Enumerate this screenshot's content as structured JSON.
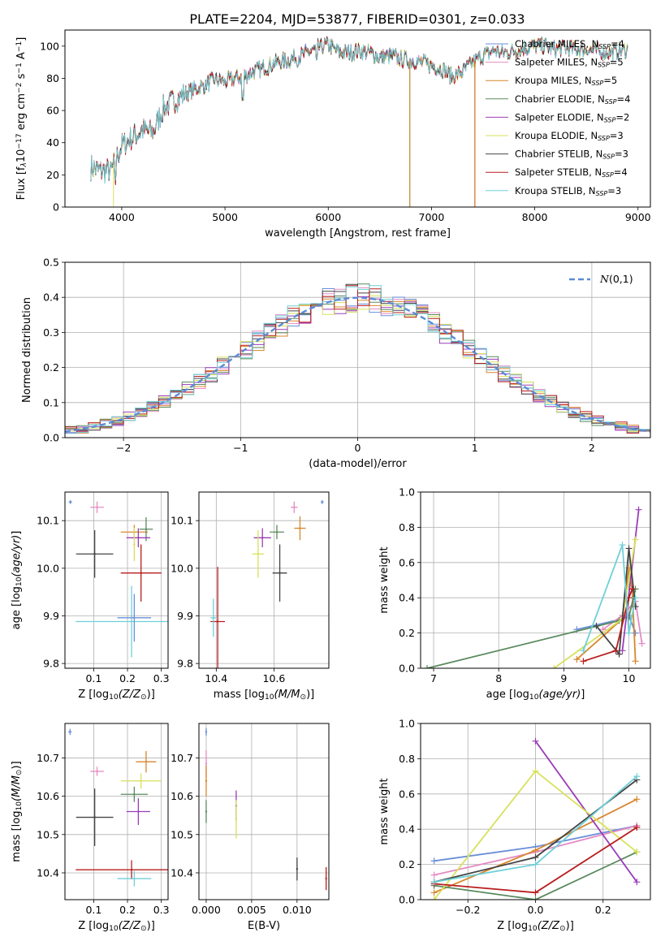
{
  "page_title": "PLATE=2204, MJD=53877, FIBERID=0301, z=0.033",
  "colors": {
    "s0": "#6a8fd8",
    "s1": "#e48bc3",
    "s2": "#d8862d",
    "s3": "#5a8a5e",
    "s4": "#9b3db8",
    "s5": "#d7e15a",
    "s6": "#444444",
    "s7": "#b81d1d",
    "s8": "#6fd0d8"
  },
  "chart_data": [
    {
      "id": "spectrum",
      "type": "line",
      "title": "PLATE=2204, MJD=53877, FIBERID=0301, z=0.033",
      "xlabel": "wavelength [Angstrom, rest frame]",
      "ylabel": "Flux [f_λ 10^-17 erg cm^-2 s^-1 A^-1]",
      "xlim": [
        3450,
        9120
      ],
      "ylim": [
        0,
        110
      ],
      "xticks": [
        4000,
        5000,
        6000,
        7000,
        8000,
        9000
      ],
      "yticks": [
        0,
        20,
        40,
        60,
        80,
        100
      ],
      "grid": false,
      "legend_position": "right",
      "legend": [
        "Chabrier MILES, N_SSP=4",
        "Salpeter MILES, N_SSP=5",
        "Kroupa MILES, N_SSP=5",
        "Chabrier ELODIE, N_SSP=4",
        "Salpeter ELODIE, N_SSP=2",
        "Kroupa ELODIE, N_SSP=3",
        "Chabrier STELIB, N_SSP=3",
        "Salpeter STELIB, N_SSP=4",
        "Kroupa STELIB, N_SSP=3"
      ],
      "continuum": {
        "wavelength": [
          3700,
          3800,
          3900,
          4000,
          4100,
          4200,
          4300,
          4400,
          4500,
          4600,
          4700,
          4800,
          4900,
          5000,
          5100,
          5200,
          5300,
          5400,
          5500,
          5600,
          5700,
          5800,
          5900,
          6000,
          6100,
          6200,
          6300,
          6400,
          6500,
          6600,
          6700,
          6800,
          6900,
          7000,
          7100,
          7200,
          7300,
          7400,
          7500,
          7600,
          7700,
          7800,
          7900,
          8000,
          8100,
          8200,
          8300,
          8400,
          8500,
          8600,
          8700,
          8800,
          8900
        ],
        "flux": [
          25,
          22,
          23,
          38,
          43,
          48,
          46,
          61,
          66,
          70,
          73,
          76,
          79,
          78,
          80,
          82,
          85,
          87,
          90,
          91,
          93,
          96,
          99,
          101,
          96,
          96,
          97,
          96,
          93,
          94,
          92,
          91,
          90,
          88,
          86,
          81,
          84,
          90,
          94,
          97,
          96,
          97,
          99,
          100,
          100,
          98,
          99,
          98,
          98,
          97,
          96,
          97,
          98
        ]
      },
      "drops": [
        {
          "series": "Kroupa ELODIE, N_SSP=3",
          "wavelength": 3920,
          "flux": 0
        },
        {
          "series": "Chabrier ELODIE, N_SSP=4",
          "wavelength": 6790,
          "flux": 0
        },
        {
          "series": "Kroupa MILES, N_SSP=5",
          "wavelength": 6790,
          "flux": 0
        },
        {
          "series": "Salpeter STELIB, N_SSP=4",
          "wavelength": 7420,
          "flux": 0
        },
        {
          "series": "Kroupa MILES, N_SSP=5",
          "wavelength": 7420,
          "flux": 0
        }
      ]
    },
    {
      "id": "residuals",
      "type": "histogram",
      "xlabel": "(data-model)/error",
      "ylabel": "Normed distribution",
      "xlim": [
        -2.5,
        2.5
      ],
      "ylim": [
        0,
        0.5
      ],
      "xticks": [
        -2,
        -1,
        0,
        1,
        2
      ],
      "yticks": [
        0.0,
        0.1,
        0.2,
        0.3,
        0.4,
        0.5
      ],
      "grid": true,
      "legend_position": "top-right",
      "legend": [
        "N(0,1)"
      ],
      "reference": {
        "name": "N(0,1)",
        "mean": 0,
        "sigma": 1
      }
    },
    {
      "id": "age-vs-Z",
      "type": "scatter",
      "xlabel": "Z [log10(Z/Z_sun)]",
      "ylabel": "age  [log10(age/yr)]",
      "xlim": [
        0.015,
        0.32
      ],
      "ylim": [
        9.79,
        10.16
      ],
      "xticks": [
        0.1,
        0.2,
        0.3
      ],
      "yticks": [
        9.8,
        9.9,
        10.0,
        10.1
      ],
      "grid": true,
      "points": [
        {
          "x": 0.031,
          "y": 10.139,
          "xerr": 0.005,
          "yerr": 0.004
        },
        {
          "x": 0.11,
          "y": 10.128,
          "xerr": 0.02,
          "yerr": 0.012
        },
        {
          "x": 0.22,
          "y": 10.076,
          "xerr": 0.04,
          "yerr": 0.015
        },
        {
          "x": 0.255,
          "y": 10.082,
          "xerr": 0.02,
          "yerr": 0.025
        },
        {
          "x": 0.232,
          "y": 10.064,
          "xerr": 0.035,
          "yerr": 0.02
        },
        {
          "x": 0.22,
          "y": 10.05,
          "xerr": 0.003,
          "yerr": 0.035
        },
        {
          "x": 0.103,
          "y": 10.03,
          "xerr": 0.055,
          "yerr": 0.05
        },
        {
          "x": 0.24,
          "y": 9.99,
          "xerr": 0.06,
          "yerr": 0.06
        },
        {
          "x": 0.212,
          "y": 9.888,
          "xerr": 0.165,
          "yerr": 0.075
        },
        {
          "x": 0.22,
          "y": 9.896,
          "xerr": 0.05,
          "yerr": 0.05
        }
      ]
    },
    {
      "id": "age-vs-mass",
      "type": "scatter",
      "xlabel": "mass [log10(M/M_sun)]",
      "ylabel": "",
      "xlim": [
        10.34,
        10.79
      ],
      "ylim": [
        9.79,
        10.16
      ],
      "xticks": [
        10.4,
        10.6
      ],
      "yticks": [
        9.8,
        9.9,
        10.0,
        10.1
      ],
      "grid": true,
      "points": [
        {
          "x": 10.767,
          "y": 10.139,
          "xerr": 0.005,
          "yerr": 0.004
        },
        {
          "x": 10.67,
          "y": 10.128,
          "xerr": 0.012,
          "yerr": 0.012
        },
        {
          "x": 10.69,
          "y": 10.084,
          "xerr": 0.02,
          "yerr": 0.025
        },
        {
          "x": 10.61,
          "y": 10.076,
          "xerr": 0.025,
          "yerr": 0.015
        },
        {
          "x": 10.56,
          "y": 10.064,
          "xerr": 0.03,
          "yerr": 0.02
        },
        {
          "x": 10.545,
          "y": 10.03,
          "xerr": 0.02,
          "yerr": 0.05
        },
        {
          "x": 10.62,
          "y": 9.99,
          "xerr": 0.025,
          "yerr": 0.06
        },
        {
          "x": 10.405,
          "y": 9.888,
          "xerr": 0.025,
          "yerr": 0.115
        },
        {
          "x": 10.39,
          "y": 9.896,
          "xerr": 0.01,
          "yerr": 0.04
        }
      ]
    },
    {
      "id": "weight-vs-age",
      "type": "line",
      "xlabel": "age  [log10(age/yr)]",
      "ylabel": "mass weight",
      "xlim": [
        6.8,
        10.33
      ],
      "ylim": [
        0,
        1
      ],
      "xticks": [
        7,
        8,
        9,
        10
      ],
      "yticks": [
        0.0,
        0.2,
        0.4,
        0.6,
        0.8,
        1.0
      ],
      "grid": true,
      "series": [
        {
          "x": [
            9.2,
            9.9,
            10.0,
            10.1
          ],
          "y": [
            0.22,
            0.28,
            0.3,
            0.2
          ]
        },
        {
          "x": [
            9.6,
            9.9,
            10.1,
            10.2
          ],
          "y": [
            0.22,
            0.3,
            0.38,
            0.14
          ]
        },
        {
          "x": [
            9.2,
            9.9,
            10.0,
            10.05,
            10.1
          ],
          "y": [
            0.05,
            0.28,
            0.57,
            0.45,
            0.04
          ]
        },
        {
          "x": [
            6.9,
            9.85,
            10.0,
            10.1
          ],
          "y": [
            0.0,
            0.27,
            0.29,
            0.45
          ]
        },
        {
          "x": [
            9.9,
            10.15
          ],
          "y": [
            0.1,
            0.9
          ]
        },
        {
          "x": [
            8.85,
            9.9,
            10.1
          ],
          "y": [
            0.0,
            0.28,
            0.73
          ]
        },
        {
          "x": [
            9.5,
            9.85,
            10.0,
            10.1
          ],
          "y": [
            0.24,
            0.08,
            0.68,
            0.35
          ]
        },
        {
          "x": [
            9.3,
            9.8,
            10.0,
            10.05
          ],
          "y": [
            0.04,
            0.1,
            0.4,
            0.45
          ]
        },
        {
          "x": [
            9.3,
            9.9,
            10.0,
            10.1
          ],
          "y": [
            0.1,
            0.7,
            0.2,
            0.4
          ]
        }
      ]
    },
    {
      "id": "mass-vs-Z",
      "type": "scatter",
      "xlabel": "Z [log10(Z/Z_sun)]",
      "ylabel": "mass [log10(M/M_sun)]",
      "xlim": [
        0.015,
        0.32
      ],
      "ylim": [
        10.33,
        10.79
      ],
      "xticks": [
        0.1,
        0.2,
        0.3
      ],
      "yticks": [
        10.4,
        10.5,
        10.6,
        10.7
      ],
      "grid": true,
      "points": [
        {
          "x": 0.03,
          "y": 10.768,
          "xerr": 0.005,
          "yerr": 0.008
        },
        {
          "x": 0.11,
          "y": 10.665,
          "xerr": 0.02,
          "yerr": 0.012
        },
        {
          "x": 0.255,
          "y": 10.69,
          "xerr": 0.03,
          "yerr": 0.028
        },
        {
          "x": 0.22,
          "y": 10.605,
          "xerr": 0.04,
          "yerr": 0.02
        },
        {
          "x": 0.232,
          "y": 10.56,
          "xerr": 0.035,
          "yerr": 0.035
        },
        {
          "x": 0.24,
          "y": 10.64,
          "xerr": 0.06,
          "yerr": 0.02
        },
        {
          "x": 0.103,
          "y": 10.545,
          "xerr": 0.055,
          "yerr": 0.075
        },
        {
          "x": 0.212,
          "y": 10.408,
          "xerr": 0.165,
          "yerr": 0.025
        },
        {
          "x": 0.22,
          "y": 10.385,
          "xerr": 0.05,
          "yerr": 0.02
        }
      ]
    },
    {
      "id": "mass-vs-EBV",
      "type": "scatter",
      "xlabel": "E(B-V)",
      "ylabel": "",
      "xlim": [
        -0.0008,
        0.0135
      ],
      "ylim": [
        10.33,
        10.79
      ],
      "xticks": [
        0.0,
        0.005,
        0.01
      ],
      "xtick_labels": [
        "0.000",
        "0.005",
        "0.010"
      ],
      "yticks": [
        10.4,
        10.5,
        10.6,
        10.7
      ],
      "grid": true,
      "points": [
        {
          "x": 0.0,
          "y": 10.768,
          "xerr": 0.0,
          "yerr": 0.01
        },
        {
          "x": 0.0,
          "y": 10.685,
          "xerr": 0.0,
          "yerr": 0.035
        },
        {
          "x": 0.0,
          "y": 10.64,
          "xerr": 0.0,
          "yerr": 0.04
        },
        {
          "x": 0.0,
          "y": 10.56,
          "xerr": 0.0,
          "yerr": 0.03
        },
        {
          "x": 0.0033,
          "y": 10.575,
          "xerr": 0.0,
          "yerr": 0.04
        },
        {
          "x": 0.0033,
          "y": 10.54,
          "xerr": 0.0,
          "yerr": 0.05
        },
        {
          "x": 0.01,
          "y": 10.41,
          "xerr": 0.0,
          "yerr": 0.03
        },
        {
          "x": 0.0132,
          "y": 10.385,
          "xerr": 0.0,
          "yerr": 0.03
        }
      ]
    },
    {
      "id": "weight-vs-Z",
      "type": "line",
      "xlabel": "Z [log10(Z/Z_sun)]",
      "ylabel": "mass weight",
      "xlim": [
        -0.34,
        0.34
      ],
      "ylim": [
        0,
        1
      ],
      "xticks": [
        -0.2,
        0.0,
        0.2
      ],
      "xtick_labels": [
        "−0.2",
        "0.0",
        "0.2"
      ],
      "yticks": [
        0.0,
        0.2,
        0.4,
        0.6,
        0.8,
        1.0
      ],
      "grid": true,
      "series": [
        {
          "x": [
            -0.3,
            0.0,
            0.3
          ],
          "y": [
            0.22,
            0.3,
            0.42
          ]
        },
        {
          "x": [
            -0.3,
            0.0,
            0.3
          ],
          "y": [
            0.14,
            0.27,
            0.42
          ]
        },
        {
          "x": [
            -0.3,
            0.0,
            0.3
          ],
          "y": [
            0.04,
            0.28,
            0.57
          ]
        },
        {
          "x": [
            -0.3,
            0.0,
            0.3
          ],
          "y": [
            0.08,
            0.0,
            0.27
          ]
        },
        {
          "x": [
            0.0,
            0.3
          ],
          "y": [
            0.9,
            0.1
          ]
        },
        {
          "x": [
            -0.3,
            0.0,
            0.3
          ],
          "y": [
            0.0,
            0.73,
            0.27
          ]
        },
        {
          "x": [
            -0.3,
            0.0,
            0.3
          ],
          "y": [
            0.1,
            0.24,
            0.68
          ]
        },
        {
          "x": [
            -0.3,
            0.0,
            0.3
          ],
          "y": [
            0.09,
            0.04,
            0.41
          ]
        },
        {
          "x": [
            -0.3,
            0.0,
            0.3
          ],
          "y": [
            0.1,
            0.2,
            0.7
          ]
        }
      ]
    }
  ]
}
